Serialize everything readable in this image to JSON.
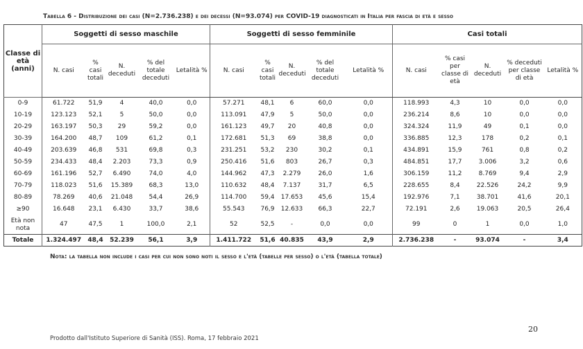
{
  "header": {
    "title": "Tabella 6 - Distribuzione dei casi (N=2.736.238) e dei decessi (N=93.074) per COVID-19 diagnosticati in Italia per fascia di età e sesso"
  },
  "table": {
    "row_header": "Classe di età (anni)",
    "groups": [
      "Soggetti di sesso maschile",
      "Soggetti di sesso femminile",
      "Casi totali"
    ],
    "columns": [
      "N. casi",
      "% casi totali",
      "N. deceduti",
      "% del totale deceduti",
      "Letalità %",
      "N. casi",
      "% casi totali",
      "N. deceduti",
      "% del totale deceduti",
      "Letalità %",
      "N. casi",
      "% casi per classe di età",
      "N. deceduti",
      "% deceduti per classe di età",
      "Letalità %"
    ],
    "rows": [
      {
        "label": "0-9",
        "cells": [
          "61.722",
          "51,9",
          "4",
          "40,0",
          "0,0",
          "57.271",
          "48,1",
          "6",
          "60,0",
          "0,0",
          "118.993",
          "4,3",
          "10",
          "0,0",
          "0,0"
        ]
      },
      {
        "label": "10-19",
        "cells": [
          "123.123",
          "52,1",
          "5",
          "50,0",
          "0,0",
          "113.091",
          "47,9",
          "5",
          "50,0",
          "0,0",
          "236.214",
          "8,6",
          "10",
          "0,0",
          "0,0"
        ]
      },
      {
        "label": "20-29",
        "cells": [
          "163.197",
          "50,3",
          "29",
          "59,2",
          "0,0",
          "161.123",
          "49,7",
          "20",
          "40,8",
          "0,0",
          "324.324",
          "11,9",
          "49",
          "0,1",
          "0,0"
        ]
      },
      {
        "label": "30-39",
        "cells": [
          "164.200",
          "48,7",
          "109",
          "61,2",
          "0,1",
          "172.681",
          "51,3",
          "69",
          "38,8",
          "0,0",
          "336.885",
          "12,3",
          "178",
          "0,2",
          "0,1"
        ]
      },
      {
        "label": "40-49",
        "cells": [
          "203.639",
          "46,8",
          "531",
          "69,8",
          "0,3",
          "231.251",
          "53,2",
          "230",
          "30,2",
          "0,1",
          "434.891",
          "15,9",
          "761",
          "0,8",
          "0,2"
        ]
      },
      {
        "label": "50-59",
        "cells": [
          "234.433",
          "48,4",
          "2.203",
          "73,3",
          "0,9",
          "250.416",
          "51,6",
          "803",
          "26,7",
          "0,3",
          "484.851",
          "17,7",
          "3.006",
          "3,2",
          "0,6"
        ]
      },
      {
        "label": "60-69",
        "cells": [
          "161.196",
          "52,7",
          "6.490",
          "74,0",
          "4,0",
          "144.962",
          "47,3",
          "2.279",
          "26,0",
          "1,6",
          "306.159",
          "11,2",
          "8.769",
          "9,4",
          "2,9"
        ]
      },
      {
        "label": "70-79",
        "cells": [
          "118.023",
          "51,6",
          "15.389",
          "68,3",
          "13,0",
          "110.632",
          "48,4",
          "7.137",
          "31,7",
          "6,5",
          "228.655",
          "8,4",
          "22.526",
          "24,2",
          "9,9"
        ]
      },
      {
        "label": "80-89",
        "cells": [
          "78.269",
          "40,6",
          "21.048",
          "54,4",
          "26,9",
          "114.700",
          "59,4",
          "17.653",
          "45,6",
          "15,4",
          "192.976",
          "7,1",
          "38.701",
          "41,6",
          "20,1"
        ]
      },
      {
        "label": "≥90",
        "cells": [
          "16.648",
          "23,1",
          "6.430",
          "33,7",
          "38,6",
          "55.543",
          "76,9",
          "12.633",
          "66,3",
          "22,7",
          "72.191",
          "2,6",
          "19.063",
          "20,5",
          "26,4"
        ]
      },
      {
        "label": "Età non nota",
        "cells": [
          "47",
          "47,5",
          "1",
          "100,0",
          "2,1",
          "52",
          "52,5",
          "-",
          "0,0",
          "0,0",
          "99",
          "0",
          "1",
          "0,0",
          "1,0"
        ]
      }
    ],
    "total": {
      "label": "Totale",
      "cells": [
        "1.324.497",
        "48,4",
        "52.239",
        "56,1",
        "3,9",
        "1.411.722",
        "51,6",
        "40.835",
        "43,9",
        "2,9",
        "2.736.238",
        "-",
        "93.074",
        "-",
        "3,4"
      ]
    }
  },
  "note": "Nota: la tabella non include i casi per cui non sono noti il sesso e l'età (tabelle per sesso) o l'età (tabella totale)",
  "footer": {
    "page_number": "20",
    "credit": "Prodotto dall'Istituto Superiore di Sanità (ISS). Roma, 17 febbraio 2021"
  }
}
